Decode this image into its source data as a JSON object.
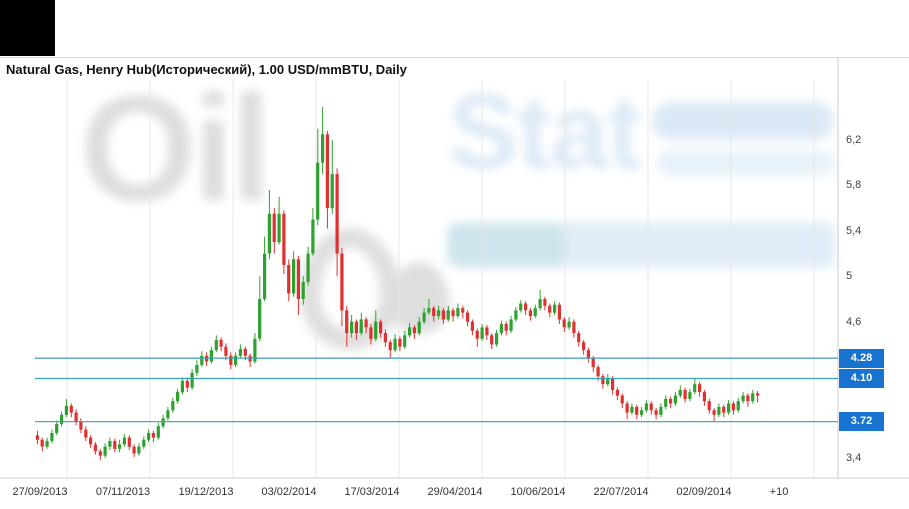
{
  "header": {
    "title": "Natural Gas, Henry Hub(Исторический), 1.00 USD/mmBTU, Daily"
  },
  "watermark": {
    "oil": "Oil",
    "stat": "Stat"
  },
  "chart_data": {
    "type": "candlestick",
    "title": "Natural Gas, Henry Hub(Исторический), 1.00 USD/mmBTU, Daily",
    "y_unit": "USD/mmBTU",
    "y_range": [
      3.3,
      6.6
    ],
    "grid": "vertical-only",
    "x_labels": [
      "27/09/2013",
      "07/11/2013",
      "19/12/2013",
      "03/02/2014",
      "17/03/2014",
      "29/04/2014",
      "10/06/2014",
      "22/07/2014",
      "02/09/2014",
      "+10"
    ],
    "y_ticks": [
      {
        "value": 6.2,
        "label": "6,2"
      },
      {
        "value": 5.8,
        "label": "5,8"
      },
      {
        "value": 5.4,
        "label": "5,4"
      },
      {
        "value": 5.0,
        "label": "5"
      },
      {
        "value": 4.6,
        "label": "4,6"
      },
      {
        "value": 3.4,
        "label": "3,4"
      }
    ],
    "levels": [
      {
        "value": 4.28,
        "label": "4.28"
      },
      {
        "value": 4.1,
        "label": "4.10"
      },
      {
        "value": 3.72,
        "label": "3.72"
      }
    ],
    "colors": {
      "up": "#2fa12f",
      "down": "#e03030",
      "level_line": "#36a0b5",
      "badge": "#1773cf",
      "grid": "#e7e7e7",
      "axis": "#cccccc"
    },
    "candles_format": [
      "open",
      "high",
      "low",
      "close"
    ],
    "candles": [
      [
        3.6,
        3.64,
        3.52,
        3.56
      ],
      [
        3.56,
        3.58,
        3.46,
        3.5
      ],
      [
        3.5,
        3.58,
        3.48,
        3.55
      ],
      [
        3.55,
        3.65,
        3.53,
        3.62
      ],
      [
        3.62,
        3.73,
        3.6,
        3.7
      ],
      [
        3.7,
        3.81,
        3.68,
        3.78
      ],
      [
        3.78,
        3.92,
        3.76,
        3.86
      ],
      [
        3.86,
        3.88,
        3.76,
        3.8
      ],
      [
        3.8,
        3.83,
        3.69,
        3.72
      ],
      [
        3.72,
        3.75,
        3.62,
        3.65
      ],
      [
        3.65,
        3.68,
        3.55,
        3.58
      ],
      [
        3.58,
        3.6,
        3.49,
        3.52
      ],
      [
        3.52,
        3.54,
        3.43,
        3.46
      ],
      [
        3.46,
        3.48,
        3.38,
        3.42
      ],
      [
        3.42,
        3.53,
        3.4,
        3.5
      ],
      [
        3.5,
        3.58,
        3.47,
        3.55
      ],
      [
        3.55,
        3.57,
        3.45,
        3.48
      ],
      [
        3.48,
        3.56,
        3.45,
        3.52
      ],
      [
        3.52,
        3.61,
        3.5,
        3.58
      ],
      [
        3.58,
        3.6,
        3.47,
        3.5
      ],
      [
        3.5,
        3.52,
        3.41,
        3.44
      ],
      [
        3.44,
        3.53,
        3.42,
        3.5
      ],
      [
        3.5,
        3.59,
        3.48,
        3.56
      ],
      [
        3.56,
        3.65,
        3.54,
        3.62
      ],
      [
        3.62,
        3.64,
        3.54,
        3.58
      ],
      [
        3.58,
        3.71,
        3.56,
        3.68
      ],
      [
        3.68,
        3.78,
        3.66,
        3.75
      ],
      [
        3.75,
        3.85,
        3.73,
        3.82
      ],
      [
        3.82,
        3.93,
        3.8,
        3.9
      ],
      [
        3.9,
        4.01,
        3.88,
        3.98
      ],
      [
        3.98,
        4.11,
        3.96,
        4.08
      ],
      [
        4.08,
        4.1,
        3.98,
        4.02
      ],
      [
        4.02,
        4.18,
        4.0,
        4.15
      ],
      [
        4.15,
        4.26,
        4.12,
        4.22
      ],
      [
        4.22,
        4.34,
        4.2,
        4.3
      ],
      [
        4.3,
        4.33,
        4.21,
        4.25
      ],
      [
        4.25,
        4.38,
        4.23,
        4.35
      ],
      [
        4.35,
        4.48,
        4.33,
        4.44
      ],
      [
        4.44,
        4.46,
        4.34,
        4.38
      ],
      [
        4.38,
        4.41,
        4.26,
        4.3
      ],
      [
        4.3,
        4.33,
        4.18,
        4.22
      ],
      [
        4.22,
        4.33,
        4.2,
        4.3
      ],
      [
        4.3,
        4.4,
        4.28,
        4.36
      ],
      [
        4.36,
        4.38,
        4.26,
        4.3
      ],
      [
        4.3,
        4.32,
        4.2,
        4.25
      ],
      [
        4.25,
        4.5,
        4.23,
        4.45
      ],
      [
        4.45,
        5.0,
        4.43,
        4.8
      ],
      [
        4.8,
        5.35,
        4.78,
        5.2
      ],
      [
        5.2,
        5.76,
        5.15,
        5.55
      ],
      [
        5.55,
        5.6,
        5.2,
        5.3
      ],
      [
        5.3,
        5.7,
        5.28,
        5.55
      ],
      [
        5.55,
        5.58,
        5.02,
        5.1
      ],
      [
        5.1,
        5.15,
        4.78,
        4.85
      ],
      [
        4.85,
        5.22,
        4.82,
        5.15
      ],
      [
        5.15,
        5.18,
        4.66,
        4.8
      ],
      [
        4.8,
        5.0,
        4.75,
        4.95
      ],
      [
        4.95,
        5.26,
        4.92,
        5.2
      ],
      [
        5.2,
        5.6,
        5.18,
        5.5
      ],
      [
        5.5,
        6.3,
        5.45,
        6.0
      ],
      [
        6.0,
        6.49,
        5.9,
        6.25
      ],
      [
        6.25,
        6.28,
        5.42,
        5.6
      ],
      [
        5.6,
        6.2,
        5.55,
        5.9
      ],
      [
        5.9,
        5.95,
        5.0,
        5.2
      ],
      [
        5.2,
        5.25,
        4.56,
        4.7
      ],
      [
        4.7,
        4.74,
        4.38,
        4.5
      ],
      [
        4.5,
        4.66,
        4.46,
        4.6
      ],
      [
        4.6,
        4.62,
        4.44,
        4.5
      ],
      [
        4.5,
        4.68,
        4.48,
        4.62
      ],
      [
        4.62,
        4.64,
        4.5,
        4.55
      ],
      [
        4.55,
        4.58,
        4.4,
        4.45
      ],
      [
        4.45,
        4.7,
        4.43,
        4.6
      ],
      [
        4.6,
        4.62,
        4.46,
        4.5
      ],
      [
        4.5,
        4.53,
        4.38,
        4.42
      ],
      [
        4.42,
        4.44,
        4.28,
        4.35
      ],
      [
        4.35,
        4.49,
        4.33,
        4.45
      ],
      [
        4.45,
        4.47,
        4.34,
        4.38
      ],
      [
        4.38,
        4.52,
        4.36,
        4.48
      ],
      [
        4.48,
        4.59,
        4.46,
        4.55
      ],
      [
        4.55,
        4.57,
        4.45,
        4.5
      ],
      [
        4.5,
        4.64,
        4.48,
        4.6
      ],
      [
        4.6,
        4.72,
        4.58,
        4.68
      ],
      [
        4.68,
        4.8,
        4.66,
        4.72
      ],
      [
        4.72,
        4.74,
        4.6,
        4.65
      ],
      [
        4.65,
        4.74,
        4.62,
        4.7
      ],
      [
        4.7,
        4.72,
        4.58,
        4.62
      ],
      [
        4.62,
        4.74,
        4.6,
        4.7
      ],
      [
        4.7,
        4.72,
        4.6,
        4.65
      ],
      [
        4.65,
        4.76,
        4.63,
        4.72
      ],
      [
        4.72,
        4.74,
        4.63,
        4.68
      ],
      [
        4.68,
        4.7,
        4.56,
        4.6
      ],
      [
        4.6,
        4.62,
        4.48,
        4.52
      ],
      [
        4.52,
        4.54,
        4.38,
        4.45
      ],
      [
        4.45,
        4.58,
        4.43,
        4.55
      ],
      [
        4.55,
        4.57,
        4.44,
        4.48
      ],
      [
        4.48,
        4.5,
        4.36,
        4.4
      ],
      [
        4.4,
        4.53,
        4.38,
        4.5
      ],
      [
        4.5,
        4.61,
        4.48,
        4.58
      ],
      [
        4.58,
        4.6,
        4.48,
        4.52
      ],
      [
        4.52,
        4.65,
        4.5,
        4.62
      ],
      [
        4.62,
        4.73,
        4.6,
        4.7
      ],
      [
        4.7,
        4.79,
        4.68,
        4.76
      ],
      [
        4.76,
        4.78,
        4.66,
        4.7
      ],
      [
        4.7,
        4.72,
        4.61,
        4.65
      ],
      [
        4.65,
        4.75,
        4.63,
        4.72
      ],
      [
        4.72,
        4.88,
        4.7,
        4.8
      ],
      [
        4.8,
        4.82,
        4.7,
        4.74
      ],
      [
        4.74,
        4.76,
        4.64,
        4.68
      ],
      [
        4.68,
        4.78,
        4.66,
        4.75
      ],
      [
        4.75,
        4.77,
        4.58,
        4.62
      ],
      [
        4.62,
        4.64,
        4.51,
        4.55
      ],
      [
        4.55,
        4.64,
        4.53,
        4.6
      ],
      [
        4.6,
        4.62,
        4.46,
        4.5
      ],
      [
        4.5,
        4.52,
        4.38,
        4.42
      ],
      [
        4.42,
        4.44,
        4.31,
        4.35
      ],
      [
        4.35,
        4.37,
        4.24,
        4.28
      ],
      [
        4.28,
        4.3,
        4.16,
        4.2
      ],
      [
        4.2,
        4.22,
        4.08,
        4.12
      ],
      [
        4.12,
        4.14,
        4.01,
        4.05
      ],
      [
        4.05,
        4.14,
        4.03,
        4.1
      ],
      [
        4.1,
        4.12,
        3.96,
        4.0
      ],
      [
        4.0,
        4.02,
        3.91,
        3.95
      ],
      [
        3.95,
        3.97,
        3.84,
        3.88
      ],
      [
        3.88,
        3.9,
        3.74,
        3.8
      ],
      [
        3.8,
        3.88,
        3.78,
        3.85
      ],
      [
        3.85,
        3.87,
        3.74,
        3.78
      ],
      [
        3.78,
        3.85,
        3.76,
        3.82
      ],
      [
        3.82,
        3.91,
        3.8,
        3.88
      ],
      [
        3.88,
        3.9,
        3.78,
        3.82
      ],
      [
        3.82,
        3.84,
        3.74,
        3.78
      ],
      [
        3.78,
        3.88,
        3.76,
        3.85
      ],
      [
        3.85,
        3.95,
        3.83,
        3.92
      ],
      [
        3.92,
        3.94,
        3.84,
        3.88
      ],
      [
        3.88,
        3.98,
        3.86,
        3.95
      ],
      [
        3.95,
        4.04,
        3.93,
        4.0
      ],
      [
        4.0,
        4.02,
        3.89,
        3.92
      ],
      [
        3.92,
        4.01,
        3.9,
        3.98
      ],
      [
        3.98,
        4.1,
        3.96,
        4.05
      ],
      [
        4.05,
        4.07,
        3.94,
        3.98
      ],
      [
        3.98,
        4.0,
        3.86,
        3.9
      ],
      [
        3.9,
        3.92,
        3.79,
        3.82
      ],
      [
        3.82,
        3.84,
        3.72,
        3.78
      ],
      [
        3.78,
        3.88,
        3.76,
        3.85
      ],
      [
        3.85,
        3.87,
        3.76,
        3.8
      ],
      [
        3.8,
        3.91,
        3.78,
        3.88
      ],
      [
        3.88,
        3.9,
        3.78,
        3.82
      ],
      [
        3.82,
        3.93,
        3.8,
        3.9
      ],
      [
        3.9,
        3.98,
        3.88,
        3.95
      ],
      [
        3.95,
        3.97,
        3.85,
        3.9
      ],
      [
        3.9,
        4.0,
        3.88,
        3.97
      ],
      [
        3.97,
        3.99,
        3.89,
        3.95
      ]
    ]
  }
}
